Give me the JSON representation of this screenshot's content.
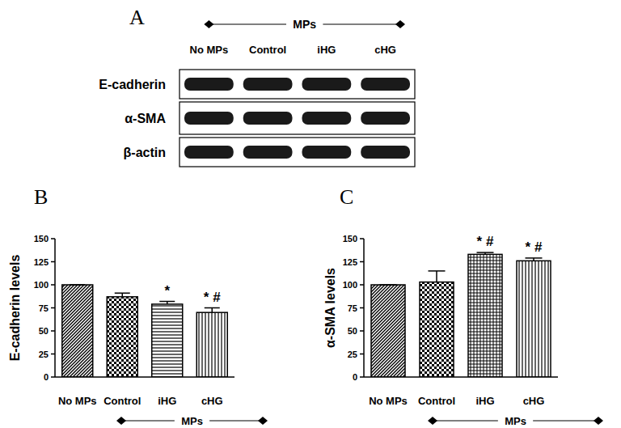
{
  "blot": {
    "panel_label": "A",
    "group_label": "MPs",
    "lanes": [
      "No MPs",
      "Control",
      "iHG",
      "cHG"
    ],
    "rows": [
      "E-cadherin",
      "α-SMA",
      "β-actin"
    ]
  },
  "chart_data": [
    {
      "type": "bar",
      "panel_label": "B",
      "y_label": "E-cadherin levels",
      "group_label": "MPs",
      "categories": [
        "No MPs",
        "Control",
        "iHG",
        "cHG"
      ],
      "values": [
        100,
        87,
        79,
        70
      ],
      "errors": [
        0,
        4,
        3,
        5
      ],
      "significance": [
        null,
        null,
        "*",
        "* #"
      ],
      "color": "#000000",
      "ylim": [
        0,
        150
      ],
      "yticks": [
        0,
        25,
        50,
        75,
        100,
        125,
        150
      ],
      "grid": false
    },
    {
      "type": "bar",
      "panel_label": "C",
      "y_label": "α-SMA levels",
      "group_label": "MPs",
      "categories": [
        "No MPs",
        "Control",
        "iHG",
        "cHG"
      ],
      "values": [
        100,
        103,
        133,
        126
      ],
      "errors": [
        0,
        12,
        2,
        3
      ],
      "significance": [
        null,
        null,
        "* #",
        "* #"
      ],
      "color": "#000000",
      "ylim": [
        0,
        150
      ],
      "yticks": [
        0,
        25,
        50,
        75,
        100,
        125,
        150
      ],
      "grid": false
    }
  ]
}
